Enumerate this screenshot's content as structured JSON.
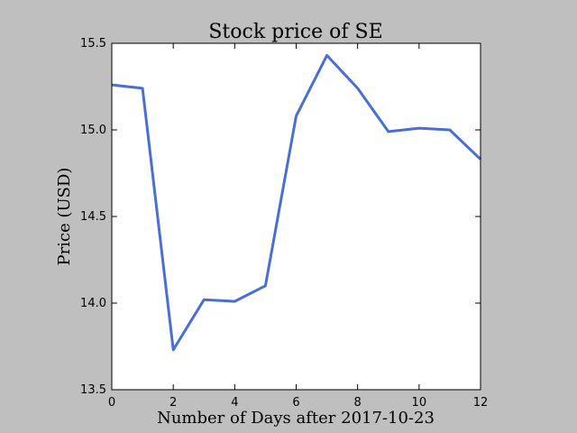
{
  "chart_data": {
    "type": "line",
    "title": "Stock price of SE",
    "xlabel": "Number of Days after 2017-10-23",
    "ylabel": "Price (USD)",
    "xlim": [
      0,
      12
    ],
    "ylim": [
      13.5,
      15.5
    ],
    "x_ticks": [
      0,
      2,
      4,
      6,
      8,
      10,
      12
    ],
    "x_tick_labels": [
      "0",
      "2",
      "4",
      "6",
      "8",
      "10",
      "12"
    ],
    "y_ticks": [
      13.5,
      14.0,
      14.5,
      15.0,
      15.5
    ],
    "y_tick_labels": [
      "13.5",
      "14.0",
      "14.5",
      "15.0",
      "15.5"
    ],
    "grid": false,
    "series": [
      {
        "color": "#4a6fd0",
        "x": [
          0,
          1,
          2,
          3,
          4,
          5,
          6,
          7,
          8,
          9,
          10,
          11,
          12
        ],
        "values": [
          15.26,
          15.24,
          13.73,
          14.02,
          14.01,
          14.1,
          15.08,
          15.43,
          15.24,
          14.99,
          15.01,
          15.0,
          14.83
        ]
      }
    ]
  }
}
